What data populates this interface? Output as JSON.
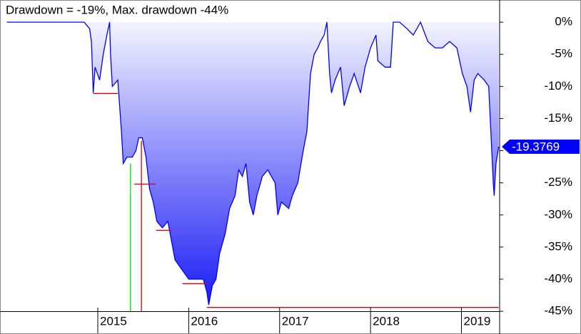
{
  "chart_data": {
    "type": "line",
    "title": "Drawdown = -19%, Max. drawdown -44%",
    "xlim": [
      2013.94,
      2019.42
    ],
    "xticks": [
      2015,
      2016,
      2017,
      2018,
      2019
    ],
    "ylim": [
      -45.1,
      2.9
    ],
    "yticks": [
      {
        "value": 0,
        "label": "0%"
      },
      {
        "value": -5,
        "label": "-5%"
      },
      {
        "value": -10,
        "label": "-10%"
      },
      {
        "value": -15,
        "label": "-15%"
      },
      {
        "value": -20,
        "label": "-20%"
      },
      {
        "value": -25,
        "label": "-25%"
      },
      {
        "value": -30,
        "label": "-30%"
      },
      {
        "value": -35,
        "label": "-35%"
      },
      {
        "value": -40,
        "label": "-40%"
      },
      {
        "value": -45,
        "label": "-45%"
      }
    ],
    "area_gradient": [
      "#f4f4ff",
      "#1c1cf6"
    ],
    "series": [
      {
        "color": "#0000ff",
        "area": true,
        "last_label": true,
        "x": [
          2014.0,
          2014.85,
          2014.91,
          2014.93,
          2014.95,
          2014.97,
          2015.02,
          2015.06,
          2015.1,
          2015.13,
          2015.14,
          2015.16,
          2015.22,
          2015.26,
          2015.28,
          2015.32,
          2015.38,
          2015.42,
          2015.45,
          2015.49,
          2015.53,
          2015.57,
          2015.61,
          2015.65,
          2015.71,
          2015.77,
          2015.81,
          2015.85,
          2015.9,
          2015.95,
          2016.0,
          2016.08,
          2016.16,
          2016.2,
          2016.22,
          2016.26,
          2016.3,
          2016.34,
          2016.4,
          2016.45,
          2016.51,
          2016.55,
          2016.59,
          2016.63,
          2016.67,
          2016.71,
          2016.75,
          2016.81,
          2016.87,
          2016.95,
          2016.98,
          2017.02,
          2017.1,
          2017.14,
          2017.2,
          2017.26,
          2017.3,
          2017.34,
          2017.38,
          2017.42,
          2017.45,
          2017.49,
          2017.52,
          2017.55,
          2017.57,
          2017.61,
          2017.67,
          2017.71,
          2017.77,
          2017.82,
          2017.89,
          2017.94,
          2018.0,
          2018.06,
          2018.08,
          2018.16,
          2018.22,
          2018.25,
          2018.32,
          2018.4,
          2018.47,
          2018.55,
          2018.63,
          2018.71,
          2018.79,
          2018.87,
          2018.95,
          2019.01,
          2019.06,
          2019.1,
          2019.14,
          2019.18,
          2019.25,
          2019.3,
          2019.32,
          2019.35,
          2019.36,
          2019.38,
          2019.41
        ],
        "values": [
          0,
          0,
          -1,
          -3,
          -11,
          -7,
          -9,
          -5,
          -2,
          0,
          -5,
          -10,
          -9,
          -17,
          -22,
          -21,
          -21,
          -20,
          -18,
          -18,
          -21,
          -26,
          -28,
          -31,
          -32,
          -31,
          -34,
          -37,
          -38,
          -39,
          -40,
          -40,
          -40,
          -42,
          -44,
          -41,
          -40,
          -36,
          -33,
          -29,
          -27,
          -23,
          -24,
          -22,
          -28,
          -30,
          -27,
          -24,
          -23,
          -25,
          -30,
          -28,
          -29,
          -27,
          -25,
          -20,
          -17,
          -8,
          -5,
          -4,
          -3,
          -2,
          0,
          -8,
          -11,
          -9,
          -7,
          -13,
          -10,
          -8,
          -11,
          -7,
          -4,
          -2,
          -6,
          -7,
          -7,
          0,
          0,
          -1,
          -2,
          0,
          -3,
          -4,
          -4,
          -3,
          -4,
          -8,
          -10,
          -14,
          -9,
          -8,
          -9,
          -10,
          -16,
          -25,
          -27,
          -22,
          -19.3769
        ]
      },
      {
        "color": "#e00000",
        "x": [
          2014.95,
          2015.22,
          2015.22,
          2015.4,
          2015.64,
          2015.64,
          2015.64,
          2015.81,
          2015.81,
          2015.93,
          2016.2,
          2016.2,
          2016.2,
          2019.41
        ],
        "values": [
          -11.1,
          -11.1,
          null,
          -25.2,
          -25.2,
          null,
          -32.4,
          -32.4,
          null,
          -40.7,
          -40.7,
          null,
          -44.4,
          -44.4
        ]
      },
      {
        "color": "#e00000",
        "x": [
          2015.48,
          2015.48
        ],
        "values": [
          -18.5,
          -45
        ]
      },
      {
        "color": "#00dd00",
        "x": [
          2015.36,
          2015.36
        ],
        "values": [
          -22,
          -45
        ]
      }
    ]
  }
}
